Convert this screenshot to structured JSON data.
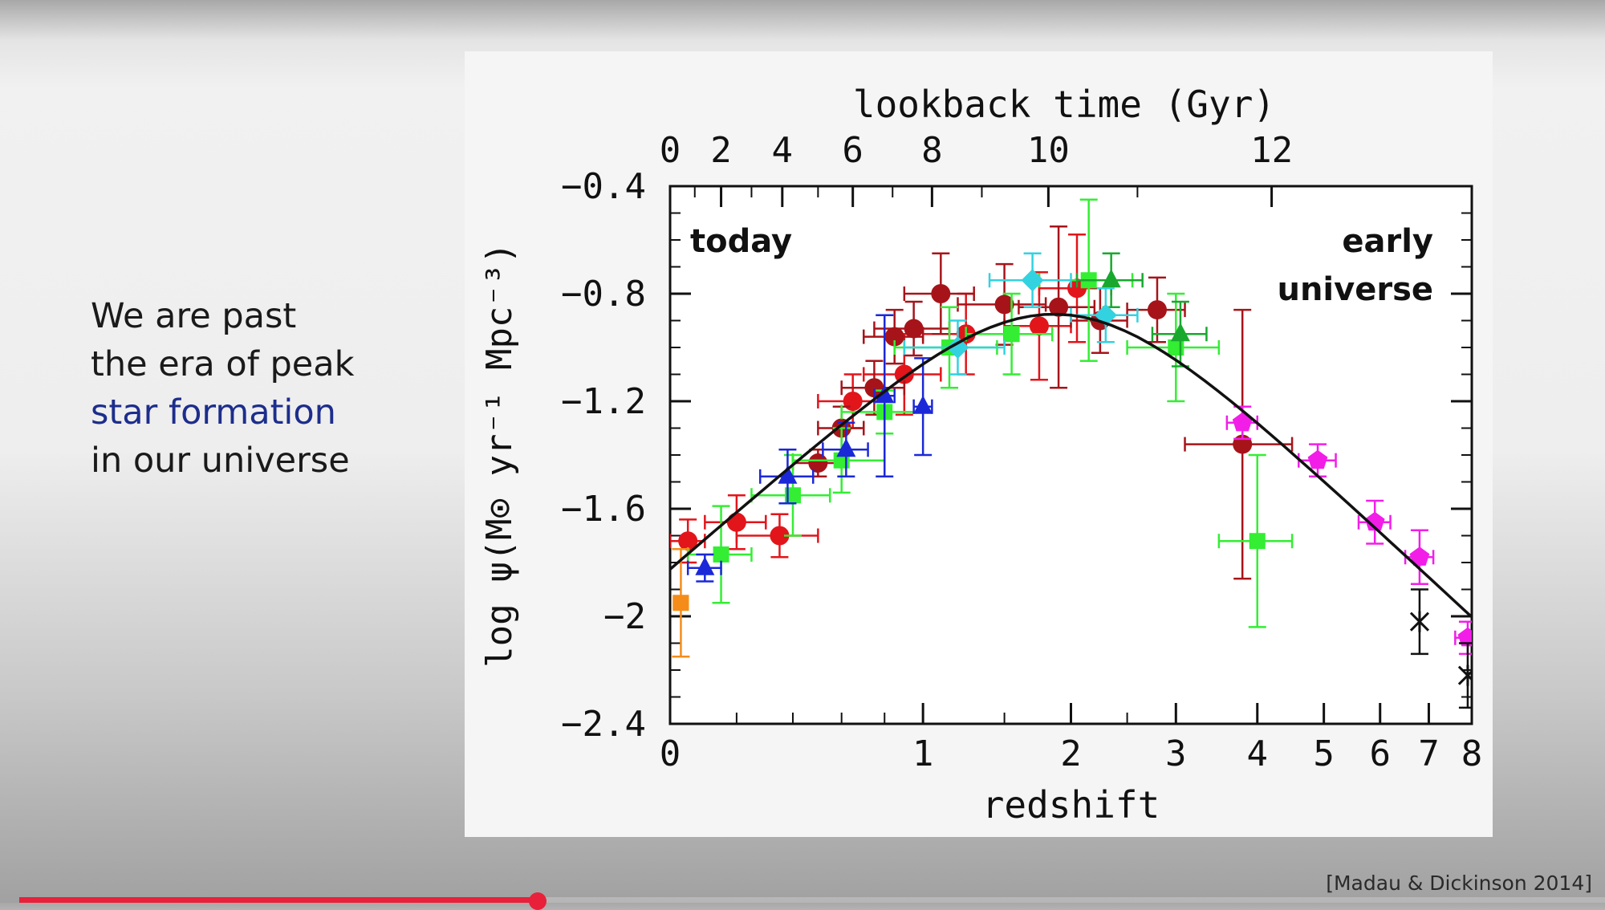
{
  "slide": {
    "bullet_lines": [
      {
        "text": "We are past",
        "highlight": false
      },
      {
        "text": "the era of peak",
        "highlight": false
      },
      {
        "text": "star formation",
        "highlight": true
      },
      {
        "text": "in our universe",
        "highlight": false
      }
    ],
    "citation": "[Madau & Dickinson 2014]",
    "highlight_color": "#1d2d8c"
  },
  "video": {
    "progress": 0.327,
    "accent_color": "#e8203a"
  },
  "chart_data": {
    "type": "scatter",
    "title": "",
    "xlabel": "redshift",
    "x2label": "lookback time (Gyr)",
    "ylabel": "log ψ(M⊙ yr⁻¹ Mpc⁻³)",
    "x_scale": "log(1+z)",
    "xlim": [
      0,
      8
    ],
    "ylim": [
      -2.4,
      -0.4
    ],
    "x_ticks": [
      0,
      1,
      2,
      3,
      4,
      5,
      6,
      7,
      8
    ],
    "y_ticks": [
      -0.4,
      -0.8,
      -1.2,
      -1.6,
      -2,
      -2.4
    ],
    "y_tick_labels": [
      "−0.4",
      "−0.8",
      "−1.2",
      "−1.6",
      "−2",
      "−2.4"
    ],
    "top_ticks": [
      {
        "label": "0",
        "z": 0
      },
      {
        "label": "2",
        "z": 0.15
      },
      {
        "label": "4",
        "z": 0.36
      },
      {
        "label": "6",
        "z": 0.65
      },
      {
        "label": "8",
        "z": 1.05
      },
      {
        "label": "10",
        "z": 1.82
      },
      {
        "label": "12",
        "z": 4.2
      }
    ],
    "annotations": {
      "left": "today",
      "right_line1": "early",
      "right_line2": "universe"
    },
    "fit_curve": {
      "name": "fit",
      "color": "#111111",
      "samples": 60
    },
    "series": [
      {
        "name": "UV (red)",
        "color": "#e2151b",
        "marker": "circle",
        "points": [
          {
            "z": 0.05,
            "y": -1.72,
            "ex": 0.05,
            "ey": 0.08
          },
          {
            "z": 0.2,
            "y": -1.65,
            "ex": 0.1,
            "ey": 0.1
          },
          {
            "z": 0.35,
            "y": -1.7,
            "ex": 0.15,
            "ey": 0.08
          },
          {
            "z": 0.65,
            "y": -1.2,
            "ex": 0.15,
            "ey": 0.1
          },
          {
            "z": 0.9,
            "y": -1.1,
            "ex": 0.2,
            "ey": 0.15
          },
          {
            "z": 1.25,
            "y": -0.95,
            "ex": 0.25,
            "ey": 0.15
          },
          {
            "z": 1.75,
            "y": -0.92,
            "ex": 0.25,
            "ey": 0.2
          },
          {
            "z": 2.05,
            "y": -0.78,
            "ex": 0.3,
            "ey": 0.2
          }
        ]
      },
      {
        "name": "UV (dark red)",
        "color": "#a6141a",
        "marker": "circle",
        "points": [
          {
            "z": 0.5,
            "y": -1.43,
            "ex": 0.1,
            "ey": 0.05
          },
          {
            "z": 0.6,
            "y": -1.3,
            "ex": 0.1,
            "ey": 0.08
          },
          {
            "z": 0.75,
            "y": -1.15,
            "ex": 0.15,
            "ey": 0.1
          },
          {
            "z": 0.85,
            "y": -0.96,
            "ex": 0.15,
            "ey": 0.1
          },
          {
            "z": 0.95,
            "y": -0.93,
            "ex": 0.2,
            "ey": 0.1
          },
          {
            "z": 1.1,
            "y": -0.8,
            "ex": 0.2,
            "ey": 0.15
          },
          {
            "z": 1.5,
            "y": -0.84,
            "ex": 0.3,
            "ey": 0.15
          },
          {
            "z": 1.9,
            "y": -0.85,
            "ex": 0.3,
            "ey": 0.3
          },
          {
            "z": 2.25,
            "y": -0.9,
            "ex": 0.25,
            "ey": 0.12
          },
          {
            "z": 2.8,
            "y": -0.86,
            "ex": 0.3,
            "ey": 0.12
          },
          {
            "z": 3.8,
            "y": -1.36,
            "ex": 0.7,
            "ey": 0.5
          }
        ]
      },
      {
        "name": "IR (green)",
        "color": "#33ee33",
        "marker": "square",
        "points": [
          {
            "z": 0.15,
            "y": -1.77,
            "ex": 0.1,
            "ey": 0.18
          },
          {
            "z": 0.4,
            "y": -1.55,
            "ex": 0.15,
            "ey": 0.15
          },
          {
            "z": 0.6,
            "y": -1.42,
            "ex": 0.2,
            "ey": 0.12
          },
          {
            "z": 0.8,
            "y": -1.24,
            "ex": 0.2,
            "ey": 0.08
          },
          {
            "z": 1.15,
            "y": -1.0,
            "ex": 0.3,
            "ey": 0.15
          },
          {
            "z": 1.55,
            "y": -0.95,
            "ex": 0.3,
            "ey": 0.15
          },
          {
            "z": 2.15,
            "y": -0.75,
            "ex": 0.4,
            "ey": 0.3
          },
          {
            "z": 3.0,
            "y": -1.0,
            "ex": 0.5,
            "ey": 0.2
          },
          {
            "z": 4.0,
            "y": -1.72,
            "ex": 0.5,
            "ey": 0.32
          }
        ]
      },
      {
        "name": "IR (dark green)",
        "color": "#18a82e",
        "marker": "triangle",
        "points": [
          {
            "z": 2.35,
            "y": -0.75,
            "ex": 0.3,
            "ey": 0.1
          },
          {
            "z": 3.05,
            "y": -0.95,
            "ex": 0.3,
            "ey": 0.12
          }
        ]
      },
      {
        "name": "cyan",
        "color": "#33d2e0",
        "marker": "diamond",
        "points": [
          {
            "z": 1.2,
            "y": -1.0,
            "ex": 0.3,
            "ey": 0.1
          },
          {
            "z": 1.7,
            "y": -0.75,
            "ex": 0.3,
            "ey": 0.1
          },
          {
            "z": 2.3,
            "y": -0.88,
            "ex": 0.3,
            "ey": 0.1
          }
        ]
      },
      {
        "name": "blue",
        "color": "#1b28d8",
        "marker": "triangle",
        "points": [
          {
            "z": 0.1,
            "y": -1.82,
            "ex": 0.05,
            "ey": 0.05
          },
          {
            "z": 0.38,
            "y": -1.48,
            "ex": 0.1,
            "ey": 0.1
          },
          {
            "z": 0.62,
            "y": -1.38,
            "ex": 0.1,
            "ey": 0.1
          },
          {
            "z": 0.8,
            "y": -1.18,
            "ex": 0.05,
            "ey": 0.3
          },
          {
            "z": 1.0,
            "y": -1.22,
            "ex": 0.05,
            "ey": 0.18
          }
        ]
      },
      {
        "name": "orange",
        "color": "#f58c1a",
        "marker": "square",
        "points": [
          {
            "z": 0.03,
            "y": -1.95,
            "ex": 0.02,
            "ey": 0.2
          }
        ]
      },
      {
        "name": "magenta",
        "color": "#f21ee8",
        "marker": "pentagon",
        "points": [
          {
            "z": 3.8,
            "y": -1.28,
            "ex": 0.2,
            "ey": 0.06
          },
          {
            "z": 4.9,
            "y": -1.42,
            "ex": 0.3,
            "ey": 0.06
          },
          {
            "z": 5.9,
            "y": -1.65,
            "ex": 0.3,
            "ey": 0.08
          },
          {
            "z": 6.8,
            "y": -1.78,
            "ex": 0.3,
            "ey": 0.1
          },
          {
            "z": 7.9,
            "y": -2.08,
            "ex": 0.3,
            "ey": 0.06
          }
        ]
      },
      {
        "name": "black",
        "color": "#111111",
        "marker": "cross",
        "points": [
          {
            "z": 6.8,
            "y": -2.02,
            "ex": 0.0,
            "ey": 0.12
          },
          {
            "z": 7.9,
            "y": -2.22,
            "ex": 0.0,
            "ey": 0.12
          }
        ]
      }
    ]
  }
}
